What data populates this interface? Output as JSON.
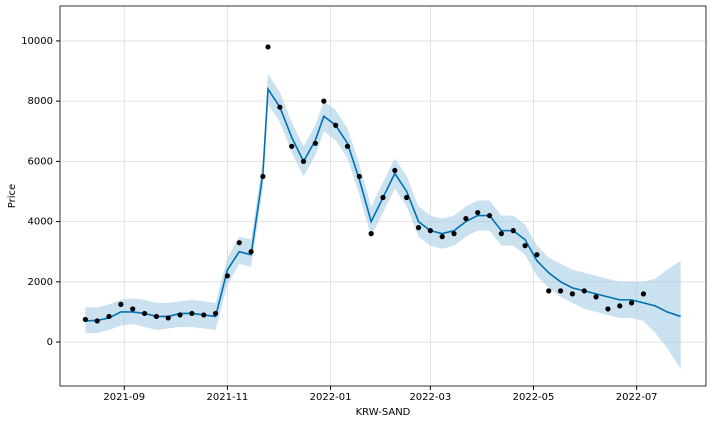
{
  "chart_data": {
    "type": "forecast",
    "x_label": "KRW-SAND",
    "y_label": "Price",
    "x": [
      "2021-08-09",
      "2021-08-16",
      "2021-08-23",
      "2021-08-30",
      "2021-09-06",
      "2021-09-13",
      "2021-09-20",
      "2021-09-27",
      "2021-10-04",
      "2021-10-11",
      "2021-10-18",
      "2021-10-25",
      "2021-11-01",
      "2021-11-08",
      "2021-11-15",
      "2021-11-22",
      "2021-11-25",
      "2021-12-02",
      "2021-12-09",
      "2021-12-16",
      "2021-12-23",
      "2021-12-28",
      "2022-01-04",
      "2022-01-11",
      "2022-01-18",
      "2022-01-25",
      "2022-02-01",
      "2022-02-08",
      "2022-02-15",
      "2022-02-22",
      "2022-03-01",
      "2022-03-08",
      "2022-03-15",
      "2022-03-22",
      "2022-03-29",
      "2022-04-05",
      "2022-04-12",
      "2022-04-19",
      "2022-04-26",
      "2022-05-03",
      "2022-05-10",
      "2022-05-17",
      "2022-05-24",
      "2022-05-31",
      "2022-06-07",
      "2022-06-14",
      "2022-06-21",
      "2022-06-28",
      "2022-07-05",
      "2022-07-12",
      "2022-07-19",
      "2022-07-27"
    ],
    "series": [
      {
        "role": "observed",
        "color": "#000000",
        "values": [
          750,
          700,
          850,
          1250,
          1100,
          950,
          850,
          800,
          900,
          950,
          900,
          950,
          2200,
          3300,
          3000,
          5500,
          9800,
          7800,
          6500,
          6000,
          6600,
          8000,
          7200,
          6500,
          5500,
          3600,
          4800,
          5700,
          4800,
          3800,
          3700,
          3500,
          3600,
          4100,
          4300,
          4200,
          3600,
          3700,
          3200,
          2900,
          1700,
          1700,
          1600,
          1700,
          1500,
          1100,
          1200,
          1300,
          1600,
          null,
          null,
          null
        ]
      },
      {
        "role": "forecast",
        "color": "#0072b2",
        "values": [
          700,
          720,
          800,
          1000,
          1000,
          950,
          850,
          850,
          950,
          950,
          900,
          850,
          2400,
          3000,
          2900,
          5600,
          8400,
          7800,
          6800,
          6000,
          6700,
          7500,
          7200,
          6600,
          5400,
          4000,
          4800,
          5600,
          5000,
          4000,
          3700,
          3600,
          3700,
          4000,
          4200,
          4200,
          3700,
          3700,
          3400,
          2700,
          2300,
          2000,
          1800,
          1700,
          1600,
          1500,
          1400,
          1400,
          1300,
          1200,
          1000,
          850
        ]
      },
      {
        "role": "lower",
        "color": "#a6cde6",
        "values": [
          300,
          300,
          400,
          550,
          600,
          500,
          400,
          450,
          500,
          500,
          450,
          400,
          1900,
          2600,
          2500,
          5100,
          7900,
          7300,
          6300,
          5500,
          6200,
          7000,
          6700,
          6100,
          4900,
          3500,
          4300,
          5100,
          4500,
          3500,
          3200,
          3100,
          3200,
          3500,
          3700,
          3700,
          3200,
          3200,
          2900,
          2200,
          1800,
          1500,
          1300,
          1100,
          1000,
          900,
          800,
          800,
          700,
          300,
          -200,
          -900
        ]
      },
      {
        "role": "upper",
        "color": "#a6cde6",
        "values": [
          1150,
          1150,
          1250,
          1400,
          1450,
          1400,
          1300,
          1300,
          1350,
          1400,
          1350,
          1300,
          2800,
          3500,
          3400,
          6100,
          8900,
          8300,
          7300,
          6500,
          7200,
          8000,
          7700,
          7100,
          5900,
          4500,
          5300,
          6100,
          5500,
          4500,
          4200,
          4100,
          4200,
          4500,
          4700,
          4700,
          4200,
          4200,
          3900,
          3200,
          2800,
          2600,
          2400,
          2300,
          2200,
          2100,
          2000,
          2000,
          2000,
          2100,
          2400,
          2700
        ]
      }
    ],
    "xlim": [
      "2021-07-25",
      "2022-08-11"
    ],
    "xticks": [
      {
        "value": "2021-09-01",
        "label": "2021-09"
      },
      {
        "value": "2021-11-01",
        "label": "2021-11"
      },
      {
        "value": "2022-01-01",
        "label": "2022-01"
      },
      {
        "value": "2022-03-01",
        "label": "2022-03"
      },
      {
        "value": "2022-05-01",
        "label": "2022-05"
      },
      {
        "value": "2022-07-01",
        "label": "2022-07"
      }
    ],
    "ylim": [
      -1460,
      11160
    ],
    "yticks": [
      0,
      2000,
      4000,
      6000,
      8000,
      10000
    ],
    "grid": true
  }
}
